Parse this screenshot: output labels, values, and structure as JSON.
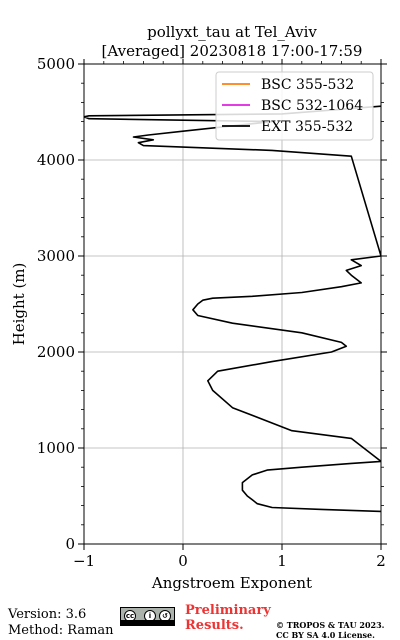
{
  "chart_data": {
    "type": "line",
    "title": "pollyxt_tau at Tel_Aviv",
    "subtitle": "[Averaged] 20230818 17:00-17:59",
    "xlabel": "Angstroem Exponent",
    "ylabel": "Height (m)",
    "xlim": [
      -1,
      2
    ],
    "ylim": [
      0,
      5000
    ],
    "xticks": [
      "−1",
      "0",
      "1",
      "2"
    ],
    "yticks": [
      "0",
      "1000",
      "2000",
      "3000",
      "4000",
      "5000"
    ],
    "grid": true,
    "legend_position": "top-right",
    "series": [
      {
        "name": "BSC 355-532",
        "color": "#ff7f0e",
        "x": [],
        "y": []
      },
      {
        "name": "BSC 532-1064",
        "color": "#e020e0",
        "x": [],
        "y": []
      },
      {
        "name": "EXT 355-532",
        "color": "#000000",
        "x": [
          2.0,
          1.4,
          0.9,
          0.75,
          0.7,
          0.65,
          0.6,
          0.6,
          0.7,
          0.85,
          1.2,
          1.7,
          2.0,
          1.7,
          1.1,
          0.5,
          0.3,
          0.25,
          0.35,
          0.9,
          1.5,
          1.65,
          1.6,
          1.2,
          0.5,
          0.15,
          0.1,
          0.15,
          0.2,
          0.3,
          0.7,
          1.2,
          1.6,
          1.8,
          1.7,
          1.65,
          1.8,
          1.7,
          2.0,
          1.7,
          0.9,
          -0.4,
          -0.45,
          -0.3,
          -0.5,
          -0.35,
          0.0,
          0.9,
          -0.95,
          -1.0,
          -0.95,
          1.0,
          2.0
        ],
        "y": [
          340,
          360,
          380,
          420,
          460,
          500,
          560,
          640,
          720,
          770,
          800,
          840,
          860,
          1100,
          1180,
          1420,
          1600,
          1700,
          1800,
          1900,
          2000,
          2060,
          2100,
          2200,
          2300,
          2380,
          2440,
          2500,
          2540,
          2560,
          2580,
          2620,
          2680,
          2720,
          2800,
          2850,
          2900,
          2960,
          3000,
          4040,
          4100,
          4150,
          4180,
          4210,
          4240,
          4260,
          4300,
          4400,
          4430,
          4450,
          4460,
          4480,
          4560
        ]
      }
    ]
  },
  "footer": {
    "version": "Version: 3.6",
    "method": "Method: Raman",
    "cc_icon": "cc-by-sa-badge",
    "preliminary_line1": "Preliminary",
    "preliminary_line2": "Results.",
    "copyright_line1": "© TROPOS & TAU 2023.",
    "copyright_line2": "CC BY SA 4.0 License."
  }
}
